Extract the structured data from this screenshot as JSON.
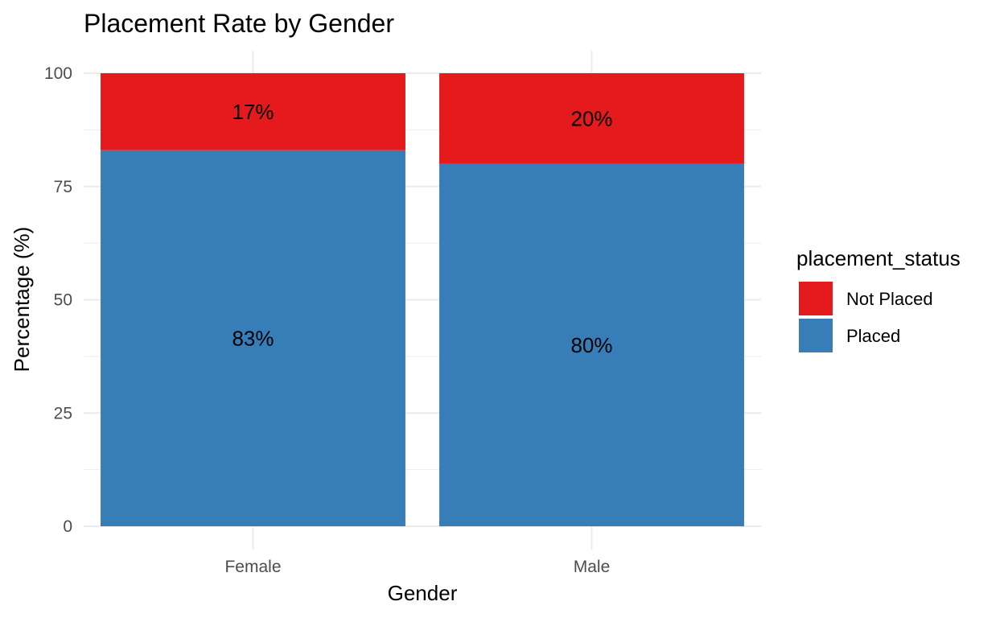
{
  "chart_data": {
    "type": "bar",
    "stacked": true,
    "title": "Placement Rate by Gender",
    "xlabel": "Gender",
    "ylabel": "Percentage (%)",
    "ylim": [
      0,
      100
    ],
    "yticks": [
      0,
      25,
      50,
      75,
      100
    ],
    "categories": [
      "Female",
      "Male"
    ],
    "series": [
      {
        "name": "Placed",
        "values": [
          83,
          80
        ],
        "labels": [
          "83%",
          "80%"
        ],
        "color": "#377EB8"
      },
      {
        "name": "Not Placed",
        "values": [
          17,
          20
        ],
        "labels": [
          "17%",
          "20%"
        ],
        "color": "#E41A1C"
      }
    ],
    "legend": {
      "title": "placement_status",
      "position": "right",
      "entries": [
        {
          "name": "Not Placed",
          "color": "#E41A1C"
        },
        {
          "name": "Placed",
          "color": "#377EB8"
        }
      ]
    },
    "grid": true
  }
}
